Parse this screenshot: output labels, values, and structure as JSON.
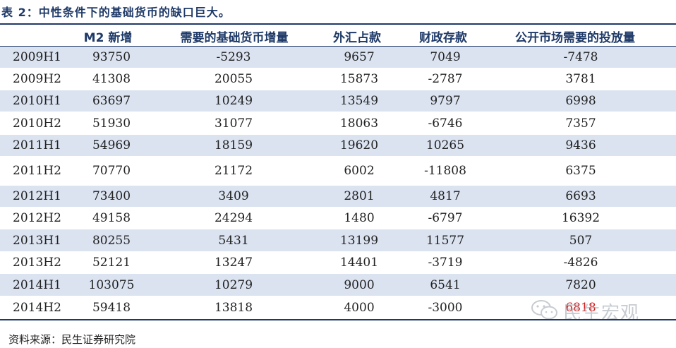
{
  "title": "表 2：中性条件下的基础货币的缺口巨大。",
  "headers": [
    "M2 新增",
    "需要的基础货币增量",
    "外汇占款",
    "财政存款",
    "公开市场需要的投放量"
  ],
  "rows": [
    {
      "label": "2009H1",
      "m2": "93750",
      "base": "-5293",
      "fx": "9657",
      "fiscal": "7049",
      "omo": "-7478"
    },
    {
      "label": "2009H2",
      "m2": "41308",
      "base": "20055",
      "fx": "15873",
      "fiscal": "-2787",
      "omo": "3781"
    },
    {
      "label": "2010H1",
      "m2": "63697",
      "base": "10249",
      "fx": "13549",
      "fiscal": "9797",
      "omo": "6998"
    },
    {
      "label": "2010H2",
      "m2": "51930",
      "base": "31077",
      "fx": "18063",
      "fiscal": "-6746",
      "omo": "7357"
    },
    {
      "label": "2011H1",
      "m2": "54969",
      "base": "18159",
      "fx": "19620",
      "fiscal": "10265",
      "omo": "9436"
    },
    {
      "label": "2011H2",
      "m2": "70770",
      "base": "21172",
      "fx": "6002",
      "fiscal": "-11808",
      "omo": "6375"
    },
    {
      "label": "2012H1",
      "m2": "73400",
      "base": "3409",
      "fx": "2801",
      "fiscal": "4817",
      "omo": "6693"
    },
    {
      "label": "2012H2",
      "m2": "49158",
      "base": "24294",
      "fx": "1480",
      "fiscal": "-6797",
      "omo": "16392"
    },
    {
      "label": "2013H1",
      "m2": "80255",
      "base": "5431",
      "fx": "13199",
      "fiscal": "11577",
      "omo": "507"
    },
    {
      "label": "2013H2",
      "m2": "52121",
      "base": "13247",
      "fx": "14401",
      "fiscal": "-3719",
      "omo": "-4826"
    },
    {
      "label": "2014H1",
      "m2": "103075",
      "base": "10279",
      "fx": "9000",
      "fiscal": "6541",
      "omo": "7820"
    },
    {
      "label": "2014H2",
      "m2": "59418",
      "base": "13818",
      "fx": "4000",
      "fiscal": "-3000",
      "omo": "6818"
    }
  ],
  "source": "资料来源：民生证券研究院",
  "watermark": {
    "text": "民生宏观",
    "icon": "wechat-icon"
  },
  "colors": {
    "header": "#1f3a68",
    "band": "#dbe3f1",
    "highlight": "#d81b1b"
  }
}
